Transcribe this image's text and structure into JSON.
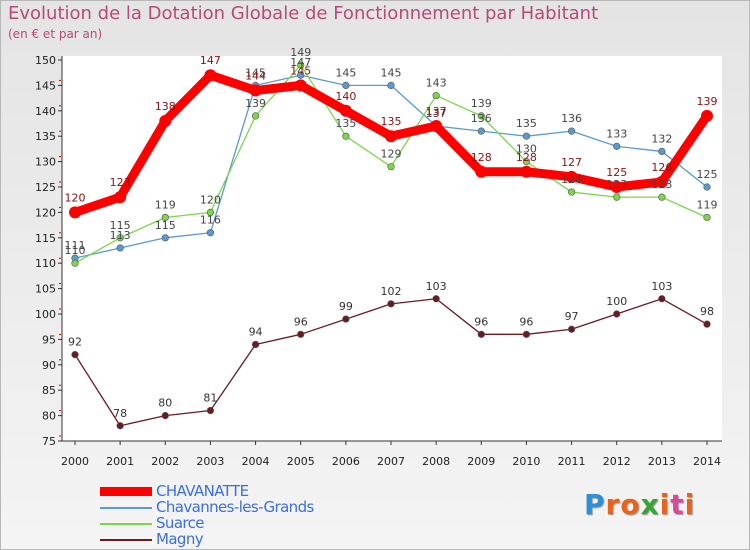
{
  "title": "Evolution de la Dotation Globale de Fonctionnement par Habitant",
  "subtitle": "(en € et par an)",
  "logo": {
    "text": "Proxiti",
    "letters": [
      "P",
      "r",
      "o",
      "x",
      "i",
      "t",
      "i"
    ],
    "colors": [
      "#2e8fd6",
      "#e8641b",
      "#e8641b",
      "#3aa335",
      "#e8641b",
      "#d94b9a",
      "#e8641b"
    ]
  },
  "chart_data": {
    "type": "line",
    "title": "Evolution de la Dotation Globale de Fonctionnement par Habitant",
    "subtitle": "(en € et par an)",
    "xlabel": "",
    "ylabel": "",
    "categories": [
      "2000",
      "2001",
      "2002",
      "2003",
      "2004",
      "2005",
      "2006",
      "2007",
      "2008",
      "2009",
      "2010",
      "2011",
      "2012",
      "2013",
      "2014"
    ],
    "ylim": [
      75,
      150
    ],
    "yticks": [
      75,
      80,
      85,
      90,
      95,
      100,
      105,
      110,
      115,
      120,
      125,
      130,
      135,
      140,
      145,
      150
    ],
    "grid": false,
    "legend_position": "bottom-left",
    "series": [
      {
        "name": "CHAVANATTE",
        "color": "#ff0000",
        "text_color": "#3a6fe0",
        "thick": true,
        "values": [
          120,
          123,
          138,
          147,
          144,
          145,
          140,
          135,
          137,
          128,
          128,
          127,
          125,
          126,
          139
        ]
      },
      {
        "name": "Chavannes-les-Grands",
        "color": "#5a9ad0",
        "text_color": "#3a6fe0",
        "thick": false,
        "values": [
          111,
          113,
          115,
          116,
          145,
          147,
          145,
          145,
          137,
          136,
          135,
          136,
          133,
          132,
          125
        ]
      },
      {
        "name": "Suarce",
        "color": "#7ad64a",
        "text_color": "#3a6fe0",
        "thick": false,
        "values": [
          110,
          115,
          119,
          120,
          139,
          149,
          135,
          129,
          143,
          139,
          130,
          124,
          123,
          123,
          119
        ]
      },
      {
        "name": "Magny",
        "color": "#6b1a22",
        "text_color": "#3a6fe0",
        "thick": false,
        "values": [
          92,
          78,
          80,
          81,
          94,
          96,
          99,
          102,
          103,
          96,
          96,
          97,
          100,
          103,
          98
        ]
      }
    ]
  }
}
